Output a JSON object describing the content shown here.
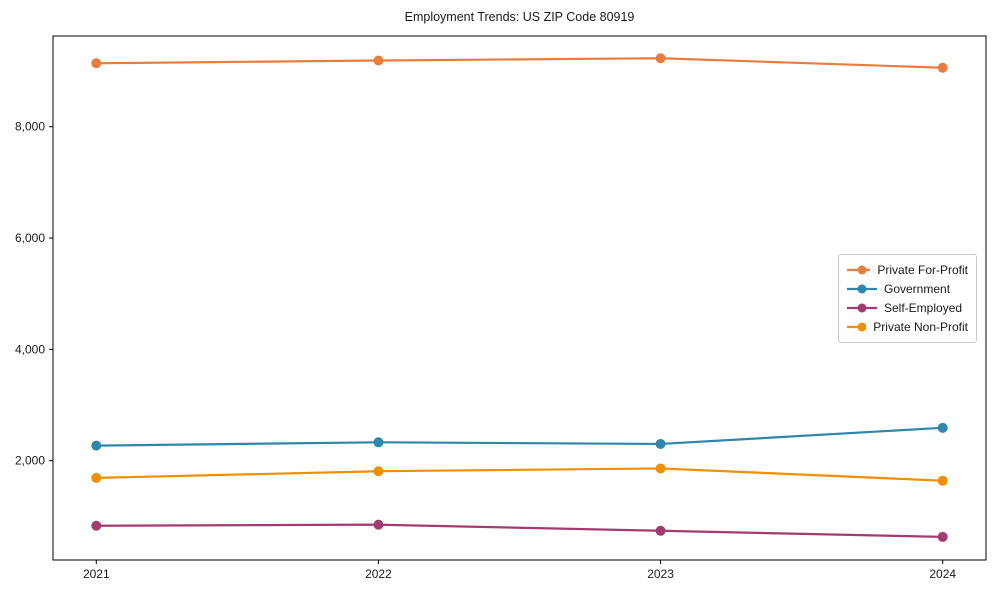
{
  "page": {
    "background": "#ffffff",
    "text_color": "#1a1a1a",
    "axis_color": "#000000"
  },
  "chart_data": {
    "type": "line",
    "title": "Employment Trends: US ZIP Code 80919",
    "categories": [
      "2021",
      "2022",
      "2023",
      "2024"
    ],
    "series": [
      {
        "name": "Private For-Profit",
        "color": "#E87D3E",
        "values": [
          9140,
          9190,
          9230,
          9060
        ]
      },
      {
        "name": "Government",
        "color": "#2E86AB",
        "values": [
          2270,
          2330,
          2300,
          2590
        ]
      },
      {
        "name": "Self-Employed",
        "color": "#A23B72",
        "values": [
          830,
          850,
          740,
          630
        ]
      },
      {
        "name": "Private Non-Profit",
        "color": "#F18F01",
        "values": [
          1690,
          1810,
          1860,
          1640
        ]
      }
    ],
    "xlabel": "",
    "ylabel": "",
    "ylim": [
      215,
      9630
    ],
    "yticks": [
      2000,
      4000,
      6000,
      8000
    ],
    "ytick_labels": [
      "2,000",
      "4,000",
      "6,000",
      "8,000"
    ],
    "grid": false,
    "legend_position": "center right",
    "marker": "o"
  }
}
